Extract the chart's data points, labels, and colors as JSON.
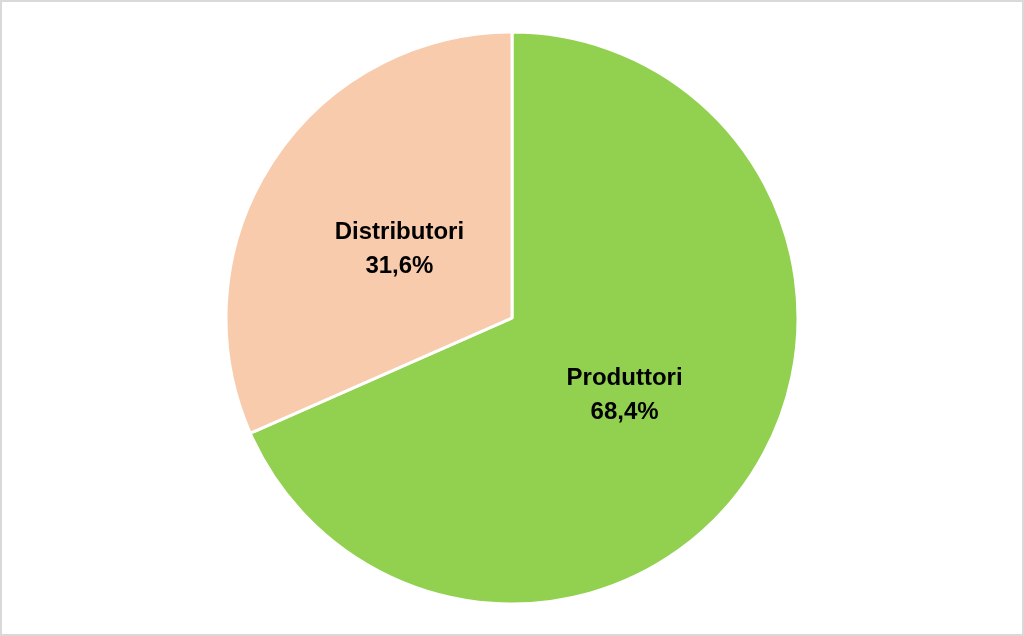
{
  "chart_data": {
    "type": "pie",
    "categories": [
      "Produttori",
      "Distributori"
    ],
    "values": [
      68.4,
      31.6
    ],
    "colors": [
      "#92d050",
      "#f8cbad"
    ],
    "value_labels": [
      "68,4%",
      "31,6%"
    ]
  }
}
